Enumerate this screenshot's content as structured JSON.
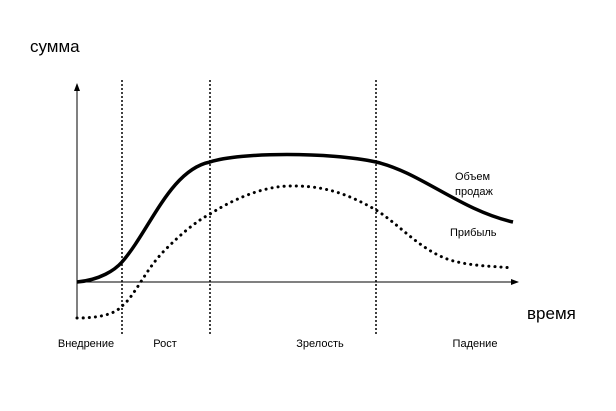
{
  "diagram": {
    "y_axis_label": "сумма",
    "x_axis_label": "время",
    "stages": [
      "Внедрение",
      "Рост",
      "Зрелость",
      "Падение"
    ],
    "curves": [
      {
        "label_lines": [
          "Объем",
          "продаж"
        ]
      },
      {
        "label_lines": [
          "Прибыль"
        ]
      }
    ]
  }
}
